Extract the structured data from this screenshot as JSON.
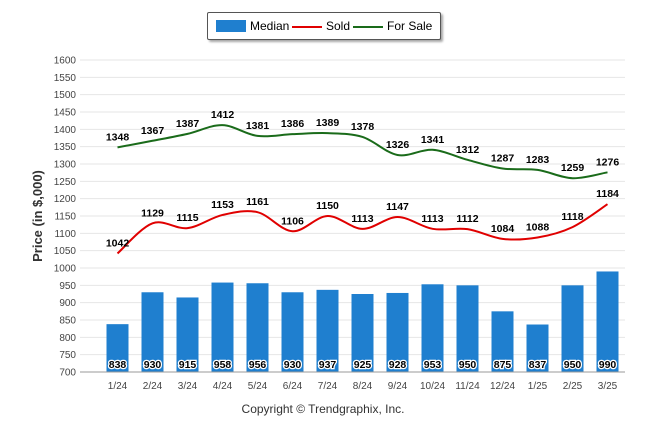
{
  "chart_data": {
    "type": "bar",
    "ylabel": "Price (in $,000)",
    "ylim": [
      700,
      1600
    ],
    "yticks": [
      700,
      750,
      800,
      850,
      900,
      950,
      1000,
      1050,
      1100,
      1150,
      1200,
      1250,
      1300,
      1350,
      1400,
      1450,
      1500,
      1550,
      1600
    ],
    "categories": [
      "1/24",
      "2/24",
      "3/24",
      "4/24",
      "5/24",
      "6/24",
      "7/24",
      "8/24",
      "9/24",
      "10/24",
      "11/24",
      "12/24",
      "1/25",
      "2/25",
      "3/25"
    ],
    "series": [
      {
        "name": "Median",
        "kind": "bar",
        "color": "#1f7fcf",
        "values": [
          838,
          930,
          915,
          958,
          956,
          930,
          937,
          925,
          928,
          953,
          950,
          875,
          837,
          950,
          990
        ]
      },
      {
        "name": "Sold",
        "kind": "line",
        "color": "#e00000",
        "values": [
          1042,
          1129,
          1115,
          1153,
          1161,
          1106,
          1150,
          1113,
          1147,
          1113,
          1112,
          1084,
          1088,
          1118,
          1184
        ]
      },
      {
        "name": "For Sale",
        "kind": "line",
        "color": "#1a6b1a",
        "values": [
          1348,
          1367,
          1387,
          1412,
          1381,
          1386,
          1389,
          1378,
          1326,
          1341,
          1312,
          1287,
          1283,
          1259,
          1276
        ]
      }
    ],
    "legend_position": "top-center",
    "grid": true
  },
  "copyright": "Copyright © Trendgraphix, Inc."
}
